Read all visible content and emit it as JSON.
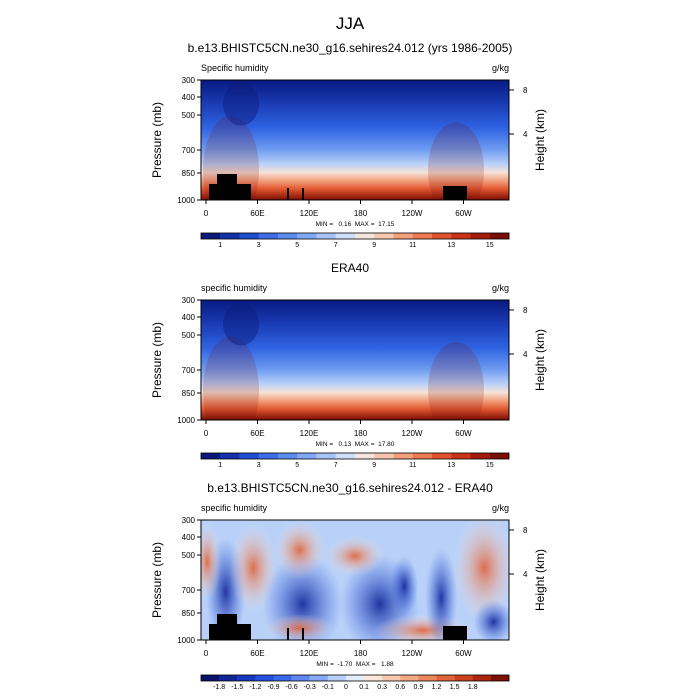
{
  "figure": {
    "title": "JJA"
  },
  "chart_data": [
    {
      "type": "heatmap",
      "title": "b.e13.BHISTC5CN.ne30_g16.sehires24.012 (yrs 1986-2005)",
      "left_label": "Specific humidity",
      "right_label": "g/kg",
      "ylabel": "Pressure (mb)",
      "ylabel_right": "Height (km)",
      "x_ticks": [
        "0",
        "60E",
        "120E",
        "180",
        "120W",
        "60W"
      ],
      "y_ticks": [
        "300",
        "400",
        "500",
        "700",
        "850",
        "1000"
      ],
      "y_ticks_right": [
        "8",
        "4"
      ],
      "ylim": [
        1000,
        300
      ],
      "stats": "MIN =   0.16  MAX =  17.15",
      "colorbar_labels": [
        "1",
        "3",
        "5",
        "7",
        "9",
        "11",
        "13",
        "15"
      ],
      "colorbar_colors": [
        "#0a1a7a",
        "#1430aa",
        "#1e4ed2",
        "#3d6ee8",
        "#5b8cf0",
        "#80a8f4",
        "#a6c4f8",
        "#cddff9",
        "#f4e6dd",
        "#f7c7ad",
        "#f3a07b",
        "#ee7a52",
        "#e0522e",
        "#c93417",
        "#a51c0a",
        "#7a0d03"
      ],
      "kind": "sequential"
    },
    {
      "type": "heatmap",
      "title": "ERA40",
      "left_label": "specific humidity",
      "right_label": "g/kg",
      "ylabel": "Pressure (mb)",
      "ylabel_right": "Height (km)",
      "x_ticks": [
        "0",
        "60E",
        "120E",
        "180",
        "120W",
        "60W"
      ],
      "y_ticks": [
        "300",
        "400",
        "500",
        "700",
        "850",
        "1000"
      ],
      "y_ticks_right": [
        "8",
        "4"
      ],
      "ylim": [
        1000,
        300
      ],
      "stats": "MIN =   0.13  MAX =  17.80",
      "colorbar_labels": [
        "1",
        "3",
        "5",
        "7",
        "9",
        "11",
        "13",
        "15"
      ],
      "colorbar_colors": [
        "#0a1a7a",
        "#1430aa",
        "#1e4ed2",
        "#3d6ee8",
        "#5b8cf0",
        "#80a8f4",
        "#a6c4f8",
        "#cddff9",
        "#f4e6dd",
        "#f7c7ad",
        "#f3a07b",
        "#ee7a52",
        "#e0522e",
        "#c93417",
        "#a51c0a",
        "#7a0d03"
      ],
      "kind": "sequential"
    },
    {
      "type": "heatmap",
      "title": "b.e13.BHISTC5CN.ne30_g16.sehires24.012 - ERA40",
      "left_label": "specific humidity",
      "right_label": "g/kg",
      "ylabel": "Pressure (mb)",
      "ylabel_right": "Height (km)",
      "x_ticks": [
        "0",
        "60E",
        "120E",
        "180",
        "120W",
        "60W"
      ],
      "y_ticks": [
        "300",
        "400",
        "500",
        "700",
        "850",
        "1000"
      ],
      "y_ticks_right": [
        "8",
        "4"
      ],
      "ylim": [
        1000,
        300
      ],
      "stats": "MIN =  -1.70  MAX =   1.88",
      "colorbar_labels": [
        "-1.8",
        "-1.5",
        "-1.2",
        "-0.9",
        "-0.6",
        "-0.3",
        "-0.1",
        "0",
        "0.1",
        "0.3",
        "0.6",
        "0.9",
        "1.2",
        "1.5",
        "1.8"
      ],
      "colorbar_colors": [
        "#08126a",
        "#0f2596",
        "#1838be",
        "#2350dc",
        "#3a68ea",
        "#5e88f0",
        "#88aaf4",
        "#b7cff9",
        "#e2ecfc",
        "#fbe6dc",
        "#f7c8ae",
        "#f3a884",
        "#ec865c",
        "#e0633a",
        "#cc421f",
        "#ac2610",
        "#7e1004"
      ],
      "kind": "diverging"
    }
  ]
}
